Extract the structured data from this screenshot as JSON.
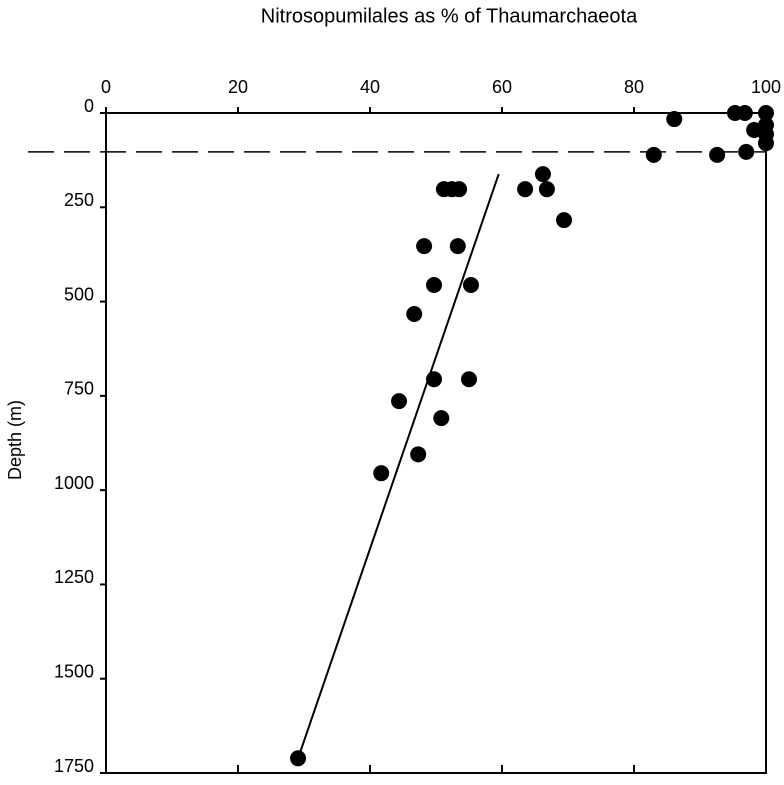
{
  "chart_data": {
    "type": "scatter",
    "title": "Nitrosopumilales as % of Thaumarchaeota",
    "y_label": "Depth (m)",
    "xlim": [
      0,
      100
    ],
    "xticks": [
      0,
      20,
      40,
      60,
      80,
      100
    ],
    "ylim": [
      0,
      1750
    ],
    "yticks": [
      0,
      250,
      500,
      750,
      1000,
      1250,
      1500,
      1750
    ],
    "y_inverted": true,
    "x_axis_position": "top",
    "color": "#000000",
    "x": [
      95.3,
      96.8,
      100,
      86.1,
      100,
      98.2,
      100,
      100,
      83.0,
      92.6,
      97.0,
      66.2,
      63.5,
      66.8,
      51.2,
      52.4,
      53.5,
      69.4,
      48.2,
      53.3,
      49.7,
      55.3,
      46.7,
      49.7,
      55.0,
      44.4,
      50.8,
      47.3,
      41.7,
      29.1
    ],
    "y": [
      0,
      0,
      0,
      16,
      32,
      45,
      56,
      80,
      111,
      111,
      103,
      162,
      202,
      202,
      202,
      202,
      202,
      284,
      353,
      353,
      456,
      456,
      533,
      706,
      706,
      764,
      809,
      905,
      955,
      1711
    ],
    "fit": {
      "x": [
        29.1,
        59.5
      ],
      "y": [
        1711,
        162
      ]
    },
    "hline": 103
  }
}
